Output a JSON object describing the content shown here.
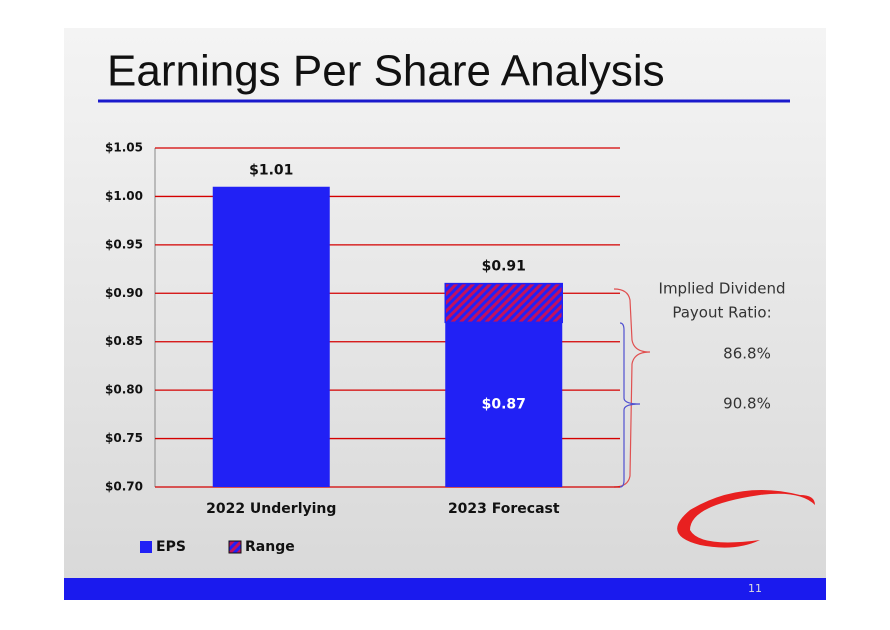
{
  "chart_data": {
    "type": "bar",
    "title": "Earnings Per Share Analysis",
    "categories": [
      "2022 Underlying",
      "2023 Forecast"
    ],
    "series": [
      {
        "name": "EPS",
        "color": "#2121f5",
        "values": [
          1.01,
          0.87
        ],
        "value_labels": [
          "$1.01",
          "$0.87"
        ]
      },
      {
        "name": "Range",
        "color": "#c01060",
        "values": [
          null,
          0.91
        ],
        "low": [
          null,
          0.87
        ],
        "value_labels": [
          null,
          "$0.91"
        ]
      }
    ],
    "ylim": [
      0.7,
      1.05
    ],
    "yticks": [
      {
        "value": 0.7,
        "label": "$0.70"
      },
      {
        "value": 0.75,
        "label": "$0.75"
      },
      {
        "value": 0.8,
        "label": "$0.80"
      },
      {
        "value": 0.85,
        "label": "$0.85"
      },
      {
        "value": 0.9,
        "label": "$0.90"
      },
      {
        "value": 0.95,
        "label": "$0.95"
      },
      {
        "value": 1.0,
        "label": "$1.00"
      },
      {
        "value": 1.05,
        "label": "$1.05"
      }
    ],
    "grid": true,
    "grid_color": "#d40000",
    "legend": "bottom",
    "annotation_lines": [
      "Implied Dividend",
      "Payout Ratio:"
    ],
    "payout_ratios": [
      {
        "label": "86.8%",
        "color": "#e01010"
      },
      {
        "label": "90.8%",
        "color": "#2a2ad8"
      }
    ]
  },
  "page_number": "11"
}
